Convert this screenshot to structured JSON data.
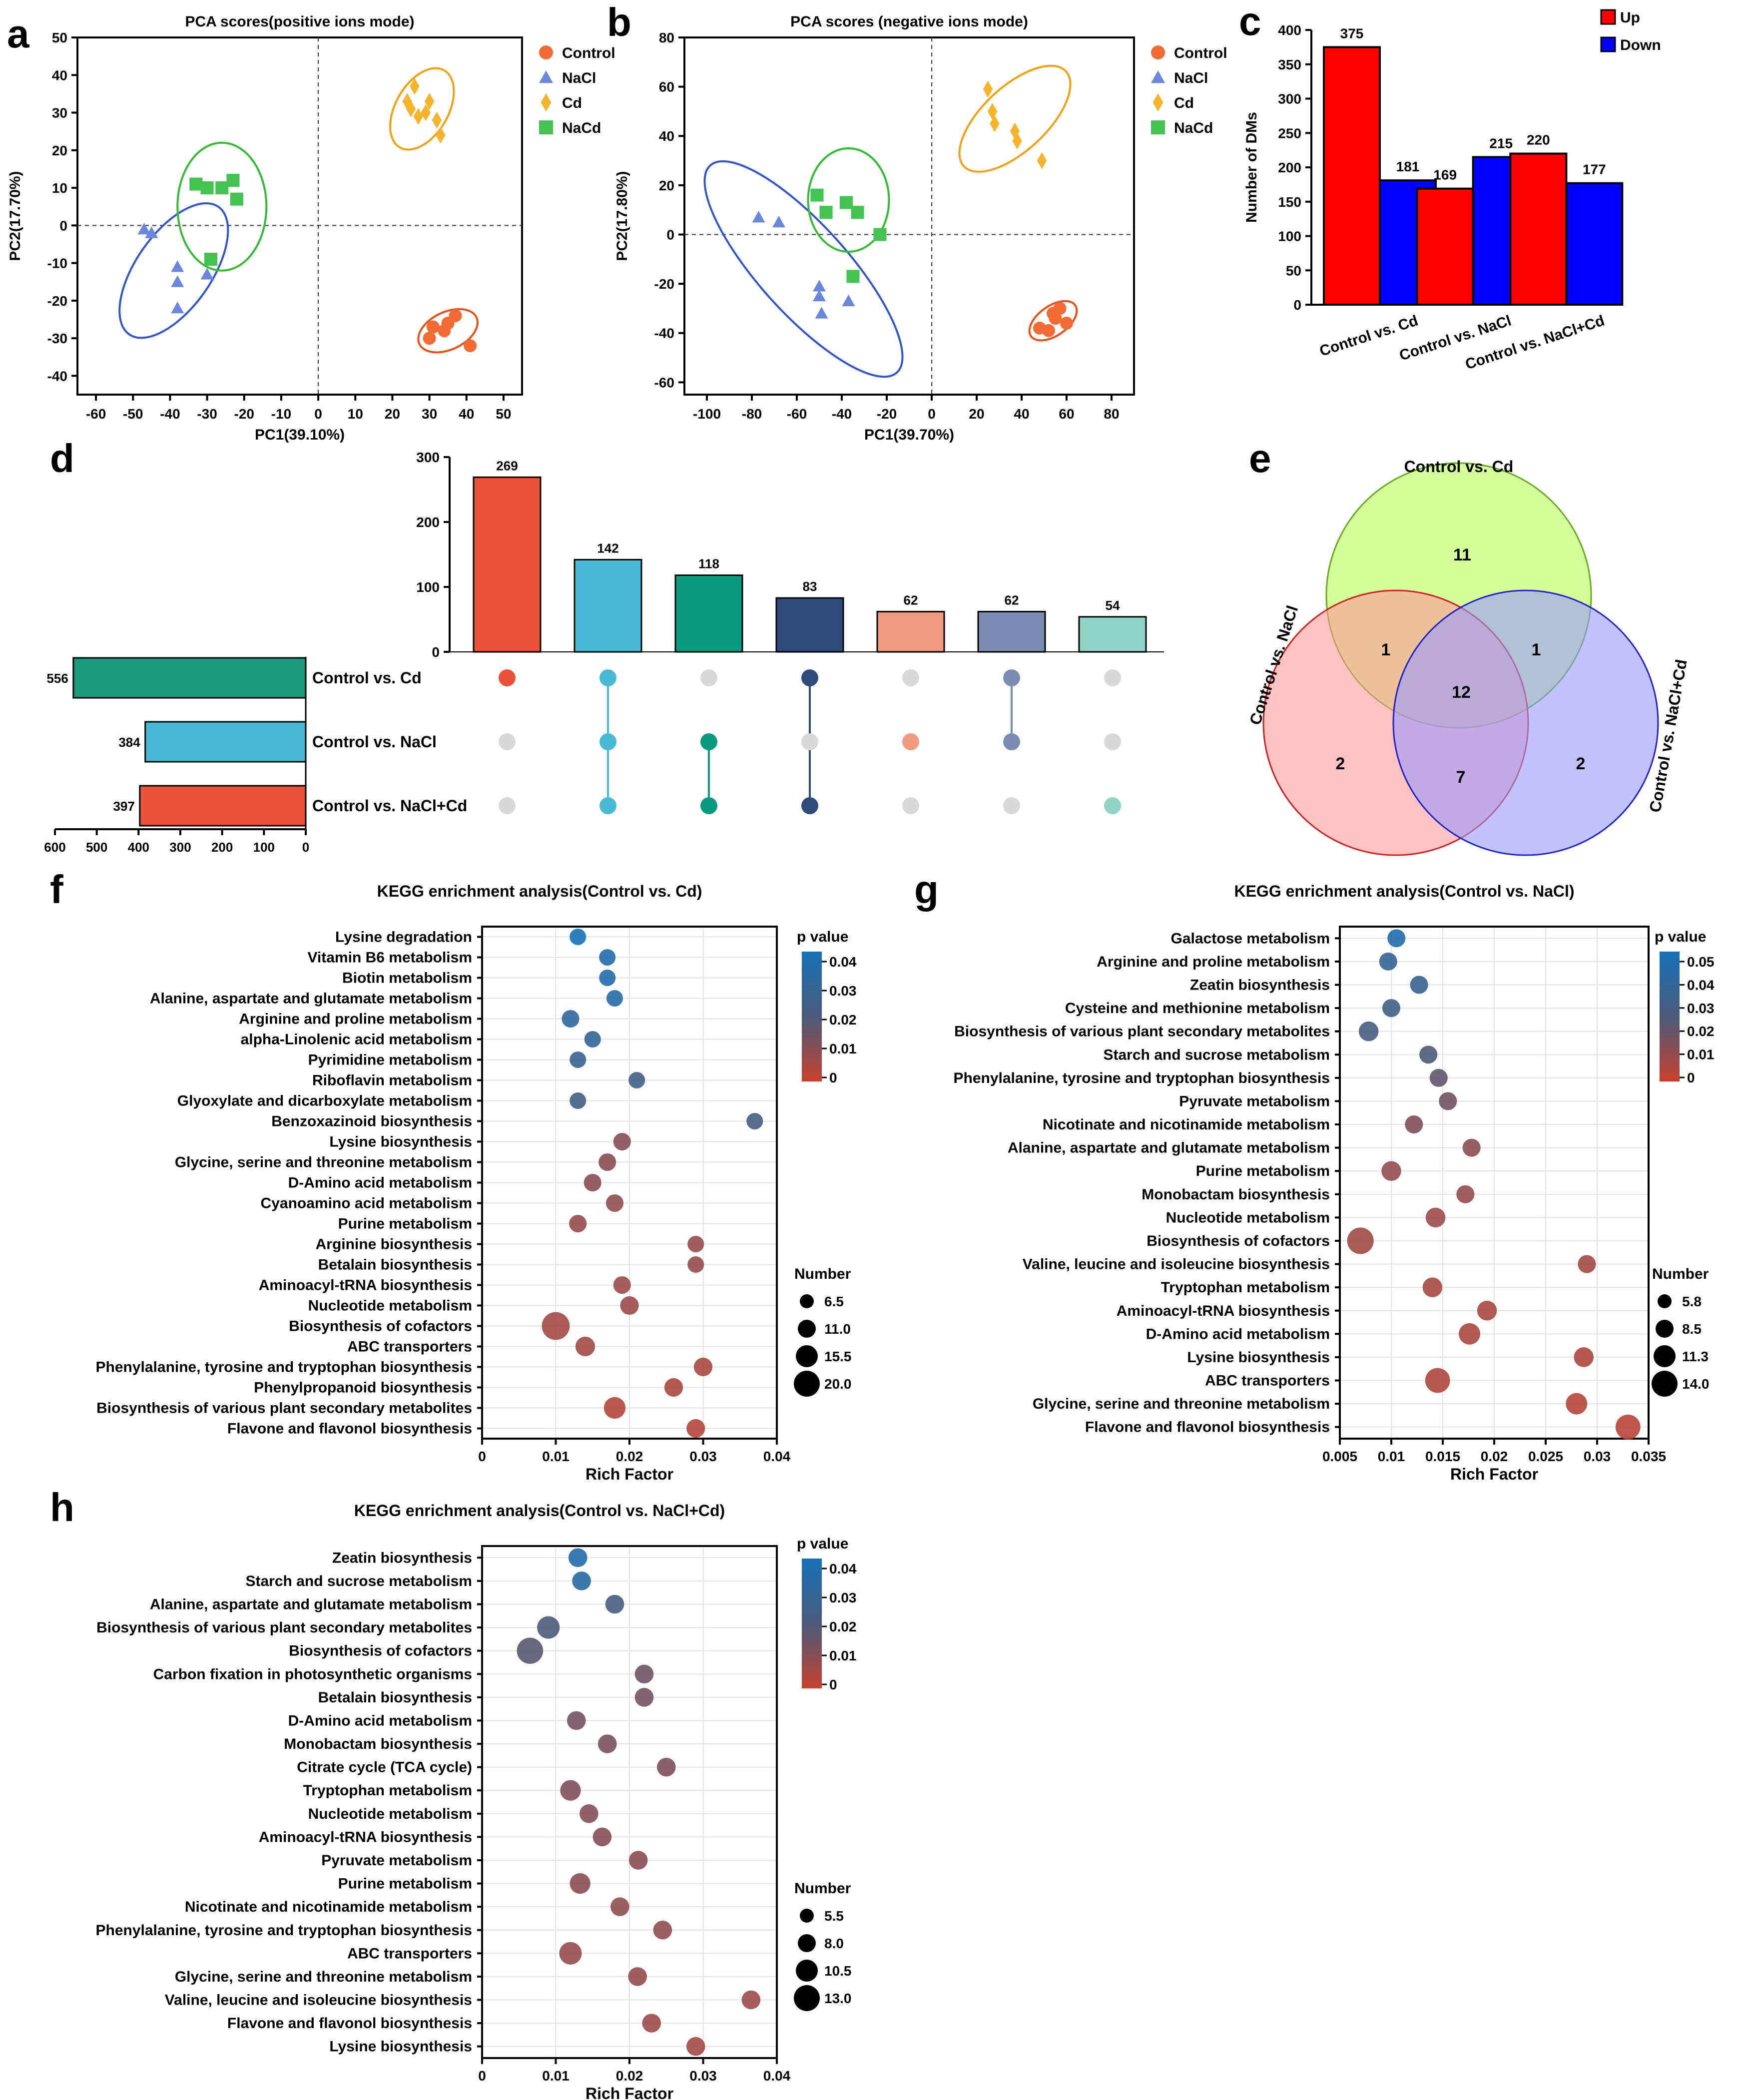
{
  "panel_letters": [
    "a",
    "b",
    "c",
    "d",
    "e",
    "f",
    "g",
    "h"
  ],
  "chart_data": [
    {
      "panel": "a",
      "type": "scatter",
      "title": "PCA scores(positive ions mode)",
      "xlabel": "PC1(39.10%)",
      "ylabel": "PC2(17.70%)",
      "xlim": [
        -65,
        55
      ],
      "ylim": [
        -45,
        50
      ],
      "xticks": [
        -60,
        -50,
        -40,
        -30,
        -20,
        -10,
        0,
        10,
        20,
        30,
        40,
        50
      ],
      "yticks": [
        -40,
        -30,
        -20,
        -10,
        0,
        10,
        20,
        30,
        40,
        50
      ],
      "legend": [
        "Control",
        "NaCl",
        "Cd",
        "NaCd"
      ],
      "series": [
        {
          "name": "Control",
          "color": "#f26b35",
          "shape": "circle",
          "points": [
            [
              30,
              -30
            ],
            [
              31,
              -27
            ],
            [
              34,
              -28
            ],
            [
              35,
              -26
            ],
            [
              37,
              -24
            ],
            [
              41,
              -32
            ]
          ],
          "ellipse": {
            "cx": 35,
            "cy": -28,
            "rx": 8.5,
            "ry": 5,
            "rot": -25
          }
        },
        {
          "name": "NaCl",
          "color": "#6b87dc",
          "shape": "triangle",
          "points": [
            [
              -47,
              -1
            ],
            [
              -45,
              -2
            ],
            [
              -38,
              -11
            ],
            [
              -38,
              -15
            ],
            [
              -38,
              -22
            ],
            [
              -30,
              -13
            ]
          ],
          "ellipse": {
            "cx": -39,
            "cy": -12,
            "rx": 21,
            "ry": 10,
            "rot": -55
          }
        },
        {
          "name": "Cd",
          "color": "#f5b52e",
          "shape": "diamond",
          "points": [
            [
              24,
              33
            ],
            [
              25,
              31
            ],
            [
              26,
              37
            ],
            [
              27,
              29
            ],
            [
              29,
              30
            ],
            [
              30,
              33
            ],
            [
              32,
              28
            ],
            [
              33,
              24
            ]
          ],
          "ellipse": {
            "cx": 28,
            "cy": 31,
            "rx": 12,
            "ry": 7,
            "rot": -60
          }
        },
        {
          "name": "NaCd",
          "color": "#44c252",
          "shape": "square",
          "points": [
            [
              -33,
              11
            ],
            [
              -30,
              10
            ],
            [
              -26,
              10
            ],
            [
              -23,
              12
            ],
            [
              -22,
              7
            ],
            [
              -29,
              -9
            ]
          ],
          "ellipse": {
            "cx": -26,
            "cy": 5,
            "rx": 12,
            "ry": 17,
            "rot": 0
          }
        }
      ]
    },
    {
      "panel": "b",
      "type": "scatter",
      "title": "PCA scores (negative ions mode)",
      "xlabel": "PC1(39.70%)",
      "ylabel": "PC2(17.80%)",
      "xlim": [
        -110,
        90
      ],
      "ylim": [
        -65,
        80
      ],
      "xticks": [
        -100,
        -80,
        -60,
        -40,
        -20,
        0,
        20,
        40,
        60,
        80
      ],
      "yticks": [
        -60,
        -40,
        -20,
        0,
        20,
        40,
        60,
        80
      ],
      "legend": [
        "Control",
        "NaCl",
        "Cd",
        "NaCd"
      ],
      "series": [
        {
          "name": "Control",
          "color": "#f26b35",
          "shape": "circle",
          "points": [
            [
              48,
              -38
            ],
            [
              52,
              -39
            ],
            [
              55,
              -34
            ],
            [
              57,
              -30
            ],
            [
              60,
              -36
            ],
            [
              54,
              -32
            ]
          ],
          "ellipse": {
            "cx": 54,
            "cy": -35,
            "rx": 12,
            "ry": 6,
            "rot": -35
          }
        },
        {
          "name": "NaCl",
          "color": "#6b87dc",
          "shape": "triangle",
          "points": [
            [
              -77,
              7
            ],
            [
              -68,
              5
            ],
            [
              -50,
              -21
            ],
            [
              -50,
              -25
            ],
            [
              -49,
              -32
            ],
            [
              -37,
              -27
            ]
          ],
          "ellipse": {
            "cx": -57,
            "cy": -14,
            "rx": 62,
            "ry": 18,
            "rot": 48
          }
        },
        {
          "name": "Cd",
          "color": "#f5b52e",
          "shape": "diamond",
          "points": [
            [
              25,
              59
            ],
            [
              27,
              50
            ],
            [
              28,
              45
            ],
            [
              37,
              42
            ],
            [
              38,
              38
            ],
            [
              49,
              30
            ]
          ],
          "ellipse": {
            "cx": 37,
            "cy": 47,
            "rx": 31,
            "ry": 13,
            "rot": -43
          }
        },
        {
          "name": "NaCd",
          "color": "#44c252",
          "shape": "square",
          "points": [
            [
              -51,
              16
            ],
            [
              -47,
              9
            ],
            [
              -38,
              13
            ],
            [
              -33,
              9
            ],
            [
              -23,
              0
            ],
            [
              -35,
              -17
            ]
          ],
          "ellipse": {
            "cx": -37,
            "cy": 14,
            "rx": 18,
            "ry": 21,
            "rot": 0
          }
        }
      ]
    },
    {
      "panel": "c",
      "type": "bar",
      "ylabel": "Number of DMs",
      "ylim": [
        0,
        400
      ],
      "yticks": [
        0,
        50,
        100,
        150,
        200,
        250,
        300,
        350,
        400
      ],
      "categories": [
        "Control vs. Cd",
        "Control vs. NaCl",
        "Control vs. NaCl+Cd"
      ],
      "series": [
        {
          "name": "Up",
          "color": "#ff0000",
          "values": [
            375,
            169,
            220
          ]
        },
        {
          "name": "Down",
          "color": "#0000ff",
          "values": [
            181,
            215,
            177
          ]
        }
      ]
    },
    {
      "panel": "d",
      "type": "bar",
      "subtype": "upset",
      "intersection_values": [
        269,
        142,
        118,
        83,
        62,
        62,
        54
      ],
      "intersection_colors": [
        "#e8533a",
        "#4ab9d6",
        "#0a9a80",
        "#2d4a7a",
        "#f29a80",
        "#7b8db3",
        "#8fd4c4"
      ],
      "intersection_ylim": [
        0,
        300
      ],
      "intersection_yticks": [
        0,
        100,
        200,
        300
      ],
      "sets": [
        {
          "name": "Control vs. Cd",
          "size": 556,
          "color": "#1d9a7a"
        },
        {
          "name": "Control vs. NaCl",
          "size": 384,
          "color": "#4ab9d6"
        },
        {
          "name": "Control vs. NaCl+Cd",
          "size": 397,
          "color": "#e8533a"
        }
      ],
      "set_xlim": [
        600,
        0
      ],
      "set_xticks": [
        600,
        500,
        400,
        300,
        200,
        100,
        0
      ],
      "membership": [
        [
          0
        ],
        [
          0,
          1,
          2
        ],
        [
          1,
          2
        ],
        [
          0,
          2
        ],
        [
          1
        ],
        [
          0,
          1
        ],
        [
          2
        ]
      ]
    },
    {
      "panel": "e",
      "type": "venn",
      "sets": [
        {
          "name": "Control vs. Cd",
          "color": "#ccff88",
          "only": 11
        },
        {
          "name": "Control vs. NaCl",
          "color": "#ff9999",
          "only": 2
        },
        {
          "name": "Control vs. NaCl+Cd",
          "color": "#9999ff",
          "only": 2
        }
      ],
      "regions": {
        "cd_nacl": 1,
        "cd_naclcd": 1,
        "all": 12,
        "nacl_naclcd": 7
      }
    },
    {
      "panel": "f",
      "type": "scatter",
      "subtype": "bubble",
      "title": "KEGG enrichment analysis(Control vs. Cd)",
      "xlabel": "Rich Factor",
      "xlim": [
        0,
        0.04
      ],
      "xticks": [
        "0",
        "0.01",
        "0.02",
        "0.03",
        "0.04"
      ],
      "pvalue_max": 0.045,
      "color_title": "p value",
      "color_ticks": [
        "0.04",
        "0.03",
        "0.02",
        "0.01",
        "0"
      ],
      "size_title": "Number",
      "size_ticks": [
        "6.5",
        "11.0",
        "15.5",
        "20.0"
      ],
      "size_range": [
        6.5,
        20
      ],
      "terms": [
        "Lysine degradation",
        "Vitamin B6 metabolism",
        "Biotin metabolism",
        "Alanine, aspartate and glutamate metabolism",
        "Arginine and proline metabolism",
        "alpha-Linolenic acid metabolism",
        "Pyrimidine metabolism",
        "Riboflavin metabolism",
        "Glyoxylate and dicarboxylate metabolism",
        "Benzoxazinoid biosynthesis",
        "Lysine biosynthesis",
        "Glycine, serine and threonine metabolism",
        "D-Amino acid metabolism",
        "Cyanoamino acid metabolism",
        "Purine metabolism",
        "Arginine biosynthesis",
        "Betalain biosynthesis",
        "Aminoacyl-tRNA biosynthesis",
        "Nucleotide metabolism",
        "Biosynthesis of cofactors",
        "ABC transporters",
        "Phenylalanine, tyrosine and tryptophan biosynthesis",
        "Phenylpropanoid biosynthesis",
        "Biosynthesis of various plant secondary metabolites",
        "Flavone and flavonol biosynthesis"
      ],
      "rich_factor": [
        0.013,
        0.017,
        0.017,
        0.018,
        0.012,
        0.015,
        0.013,
        0.021,
        0.013,
        0.037,
        0.019,
        0.017,
        0.015,
        0.018,
        0.013,
        0.029,
        0.029,
        0.019,
        0.02,
        0.01,
        0.014,
        0.03,
        0.026,
        0.018,
        0.029
      ],
      "p_value": [
        0.045,
        0.04,
        0.04,
        0.038,
        0.035,
        0.033,
        0.03,
        0.027,
        0.026,
        0.025,
        0.012,
        0.011,
        0.011,
        0.01,
        0.009,
        0.009,
        0.009,
        0.008,
        0.008,
        0.007,
        0.007,
        0.006,
        0.005,
        0.004,
        0.004
      ],
      "number": [
        7,
        7,
        7,
        7,
        8,
        7,
        7,
        7,
        7,
        7,
        8,
        8,
        8,
        8,
        8,
        7,
        7,
        8,
        9,
        18,
        10,
        9,
        9,
        12,
        9
      ]
    },
    {
      "panel": "g",
      "type": "scatter",
      "subtype": "bubble",
      "title": "KEGG enrichment analysis(Control vs. NaCl)",
      "xlabel": "Rich Factor",
      "xlim": [
        0.005,
        0.035
      ],
      "xticks": [
        "0.005",
        "0.01",
        "0.015",
        "0.02",
        "0.025",
        "0.03",
        "0.035"
      ],
      "pvalue_max": 0.05,
      "color_title": "p value",
      "color_ticks": [
        "0.05",
        "0.04",
        "0.03",
        "0.02",
        "0.01",
        "0"
      ],
      "size_title": "Number",
      "size_ticks": [
        "5.8",
        "8.5",
        "11.3",
        "14.0"
      ],
      "size_range": [
        5.8,
        14
      ],
      "terms": [
        "Galactose metabolism",
        "Arginine and proline metabolism",
        "Zeatin biosynthesis",
        "Cysteine and methionine metabolism",
        "Biosynthesis of various plant secondary metabolites",
        "Starch and sucrose metabolism",
        "Phenylalanine, tyrosine and tryptophan biosynthesis",
        "Pyruvate metabolism",
        "Nicotinate and nicotinamide metabolism",
        "Alanine, aspartate and glutamate metabolism",
        "Purine metabolism",
        "Monobactam biosynthesis",
        "Nucleotide metabolism",
        "Biosynthesis of cofactors",
        "Valine, leucine and isoleucine biosynthesis",
        "Tryptophan metabolism",
        "Aminoacyl-tRNA biosynthesis",
        "D-Amino acid metabolism",
        "Lysine biosynthesis",
        "ABC transporters",
        "Glycine, serine and threonine metabolism",
        "Flavone and flavonol biosynthesis"
      ],
      "rich_factor": [
        0.0105,
        0.0097,
        0.0127,
        0.01,
        0.0078,
        0.0136,
        0.0146,
        0.0155,
        0.0122,
        0.0178,
        0.01,
        0.0172,
        0.0143,
        0.007,
        0.029,
        0.014,
        0.0193,
        0.0176,
        0.0287,
        0.0145,
        0.028,
        0.033
      ],
      "p_value": [
        0.045,
        0.035,
        0.033,
        0.03,
        0.028,
        0.024,
        0.02,
        0.017,
        0.014,
        0.012,
        0.011,
        0.01,
        0.009,
        0.008,
        0.008,
        0.007,
        0.006,
        0.006,
        0.005,
        0.005,
        0.004,
        0.003
      ],
      "number": [
        7,
        7,
        7,
        7,
        8,
        7,
        7,
        7,
        7,
        7,
        8,
        7,
        8,
        12,
        7,
        8,
        8,
        9,
        8,
        11,
        9,
        11
      ]
    },
    {
      "panel": "h",
      "type": "scatter",
      "subtype": "bubble",
      "title": "KEGG enrichment analysis(Control vs. NaCl+Cd)",
      "xlabel": "Rich Factor",
      "xlim": [
        0,
        0.04
      ],
      "xticks": [
        "0",
        "0.01",
        "0.02",
        "0.03",
        "0.04"
      ],
      "pvalue_max": 0.045,
      "color_title": "p value",
      "color_ticks": [
        "0.04",
        "0.03",
        "0.02",
        "0.01",
        "0"
      ],
      "size_title": "Number",
      "size_ticks": [
        "5.5",
        "8.0",
        "10.5",
        "13.0"
      ],
      "size_range": [
        5.5,
        13
      ],
      "terms": [
        "Zeatin biosynthesis",
        "Starch and sucrose metabolism",
        "Alanine, aspartate and glutamate metabolism",
        "Biosynthesis of various plant secondary metabolites",
        "Biosynthesis of cofactors",
        "Carbon fixation in photosynthetic organisms",
        "Betalain biosynthesis",
        "D-Amino acid metabolism",
        "Monobactam biosynthesis",
        "Citrate cycle (TCA cycle)",
        "Tryptophan metabolism",
        "Nucleotide metabolism",
        "Aminoacyl-tRNA biosynthesis",
        "Pyruvate metabolism",
        "Purine metabolism",
        "Nicotinate and nicotinamide metabolism",
        "Phenylalanine, tyrosine and tryptophan biosynthesis",
        "ABC transporters",
        "Glycine, serine and threonine metabolism",
        "Valine, leucine and isoleucine biosynthesis",
        "Flavone and flavonol biosynthesis",
        "Lysine biosynthesis"
      ],
      "rich_factor": [
        0.013,
        0.0135,
        0.018,
        0.009,
        0.0065,
        0.022,
        0.022,
        0.0128,
        0.017,
        0.025,
        0.012,
        0.0145,
        0.0163,
        0.0212,
        0.0133,
        0.0187,
        0.0245,
        0.012,
        0.0211,
        0.0365,
        0.023,
        0.029
      ],
      "p_value": [
        0.04,
        0.037,
        0.025,
        0.022,
        0.02,
        0.016,
        0.015,
        0.015,
        0.014,
        0.013,
        0.013,
        0.012,
        0.012,
        0.011,
        0.011,
        0.01,
        0.01,
        0.009,
        0.009,
        0.008,
        0.008,
        0.007
      ],
      "number": [
        7,
        7,
        7,
        9,
        11,
        7,
        7,
        7,
        7,
        7,
        8,
        7,
        7,
        7,
        8,
        7,
        7,
        9,
        7,
        7,
        7,
        7
      ]
    }
  ]
}
